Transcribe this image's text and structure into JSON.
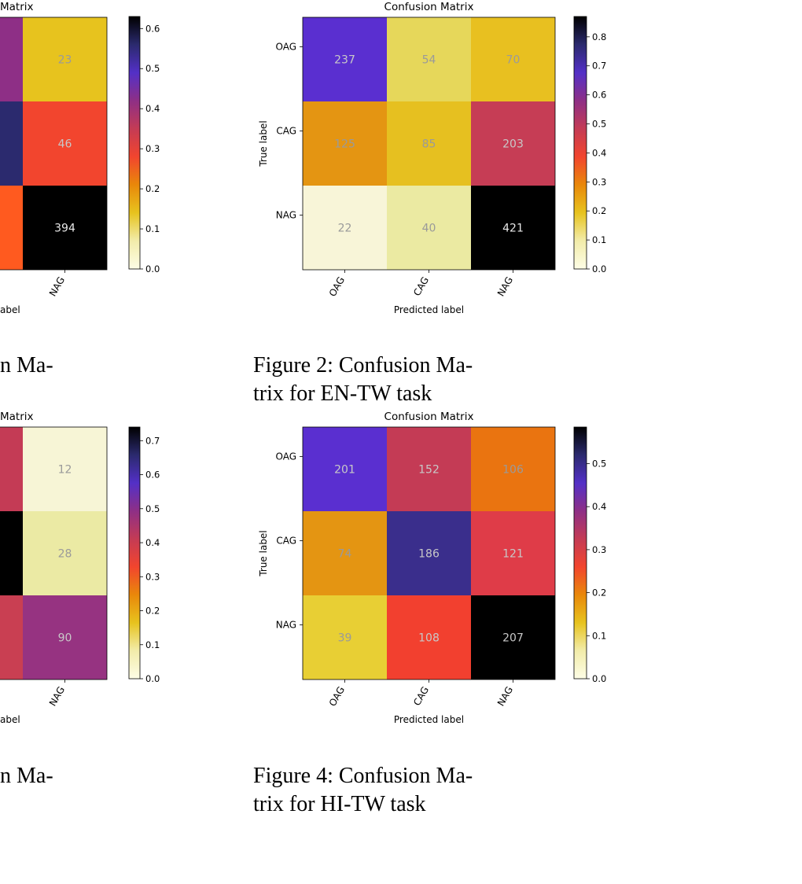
{
  "palette": [
    "#fdfde6",
    "#f2ecaa",
    "#e7c31e",
    "#e9880a",
    "#f2452e",
    "#c43b55",
    "#8e2f86",
    "#5330c7",
    "#2b2a6e",
    "#000000"
  ],
  "chart_data": [
    {
      "type": "heatmap",
      "title": "Confusion Matrix",
      "title_visible": "Matrix",
      "xlabel": "Predicted label",
      "xlabel_visible": "abel",
      "ylabel": "",
      "x_tick_labels": [
        "",
        "",
        "NAG"
      ],
      "y_tick_labels": [
        "",
        "",
        ""
      ],
      "values": [
        [
          null,
          null,
          23
        ],
        [
          null,
          null,
          46
        ],
        [
          null,
          null,
          394
        ]
      ],
      "cell_colors": [
        [
          "#8e2f86",
          "#8e2f86",
          "#e7c31e"
        ],
        [
          "#2b2a6e",
          "#2b2a6e",
          "#f2452e"
        ],
        [
          "#ff5a1f",
          "#ff5a1f",
          "#000000"
        ]
      ],
      "colorbar": {
        "min": 0,
        "max": 0.63,
        "ticks": [
          "0.0",
          "0.1",
          "0.2",
          "0.3",
          "0.4",
          "0.5",
          "0.6"
        ]
      },
      "caption": "n Ma-"
    },
    {
      "type": "heatmap",
      "title": "Confusion Matrix",
      "title_visible": "Confusion Matrix",
      "xlabel": "Predicted label",
      "xlabel_visible": "Predicted label",
      "ylabel": "True label",
      "x_tick_labels": [
        "OAG",
        "CAG",
        "NAG"
      ],
      "y_tick_labels": [
        "OAG",
        "CAG",
        "NAG"
      ],
      "values": [
        [
          237,
          54,
          70
        ],
        [
          125,
          85,
          203
        ],
        [
          22,
          40,
          421
        ]
      ],
      "cell_colors": [
        [
          "#5a2fd0",
          "#e6d75a",
          "#e8c020"
        ],
        [
          "#e49512",
          "#e6c020",
          "#c63d55"
        ],
        [
          "#f8f5d8",
          "#ebeaa2",
          "#000000"
        ]
      ],
      "colorbar": {
        "min": 0,
        "max": 0.87,
        "ticks": [
          "0.0",
          "0.1",
          "0.2",
          "0.3",
          "0.4",
          "0.5",
          "0.6",
          "0.7",
          "0.8"
        ]
      },
      "caption": "Figure 2: Confusion Ma- trix for EN-TW task"
    },
    {
      "type": "heatmap",
      "title": "Confusion Matrix",
      "title_visible": "Matrix",
      "xlabel": "Predicted label",
      "xlabel_visible": "abel",
      "ylabel": "",
      "x_tick_labels": [
        "",
        "",
        "NAG"
      ],
      "y_tick_labels": [
        "",
        "",
        ""
      ],
      "values": [
        [
          null,
          null,
          12
        ],
        [
          null,
          null,
          28
        ],
        [
          null,
          null,
          90
        ]
      ],
      "cell_colors": [
        [
          "#c43b55",
          "#c43b55",
          "#f7f5d6"
        ],
        [
          "#000000",
          "#000000",
          "#ebeaa4"
        ],
        [
          "#c93f52",
          "#c93f52",
          "#963381"
        ]
      ],
      "colorbar": {
        "min": 0,
        "max": 0.74,
        "ticks": [
          "0.0",
          "0.1",
          "0.2",
          "0.3",
          "0.4",
          "0.5",
          "0.6",
          "0.7"
        ]
      },
      "caption": "n Ma-"
    },
    {
      "type": "heatmap",
      "title": "Confusion Matrix",
      "title_visible": "Confusion Matrix",
      "xlabel": "Predicted label",
      "xlabel_visible": "Predicted label",
      "ylabel": "True label",
      "x_tick_labels": [
        "OAG",
        "CAG",
        "NAG"
      ],
      "y_tick_labels": [
        "OAG",
        "CAG",
        "NAG"
      ],
      "values": [
        [
          201,
          152,
          106
        ],
        [
          74,
          186,
          121
        ],
        [
          39,
          108,
          207
        ]
      ],
      "cell_colors": [
        [
          "#5a2fd0",
          "#c43b55",
          "#ea7410"
        ],
        [
          "#e49512",
          "#3a2e8c",
          "#df3c48"
        ],
        [
          "#e8cf34",
          "#f2402f",
          "#000000"
        ]
      ],
      "colorbar": {
        "min": 0,
        "max": 0.585,
        "ticks": [
          "0.0",
          "0.1",
          "0.2",
          "0.3",
          "0.4",
          "0.5"
        ]
      },
      "caption": "Figure 4: Confusion Ma- trix for HI-TW task"
    }
  ],
  "captions": [
    {
      "line1": "n Ma-",
      "line2": ""
    },
    {
      "line1": "Figure 2:  Confusion Ma-",
      "line2": "trix for EN-TW task"
    },
    {
      "line1": "n Ma-",
      "line2": ""
    },
    {
      "line1": "Figure 4:  Confusion Ma-",
      "line2": "trix for HI-TW task"
    }
  ]
}
